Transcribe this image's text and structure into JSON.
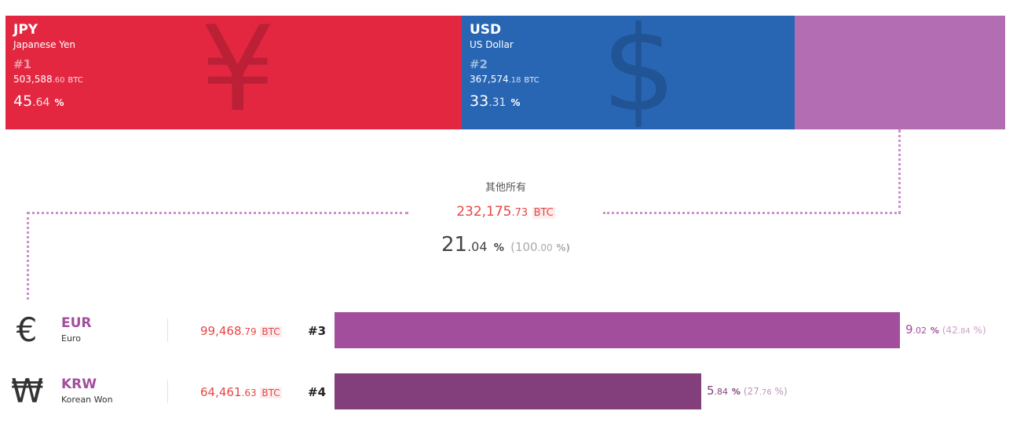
{
  "chart_data": {
    "type": "bar",
    "unit": "BTC",
    "top_segments": [
      {
        "code": "JPY",
        "name": "Japanese Yen",
        "rank": "#1",
        "symbol": "¥",
        "amount_int": "503,588",
        "amount_dec": ".60",
        "amount_unit": "BTC",
        "pct_int": "45",
        "pct_dec": ".64",
        "pct_unit": "%",
        "value": 45.64,
        "color": "#e32741"
      },
      {
        "code": "USD",
        "name": "US Dollar",
        "rank": "#2",
        "symbol": "$",
        "amount_int": "367,574",
        "amount_dec": ".18",
        "amount_unit": "BTC",
        "pct_int": "33",
        "pct_dec": ".31",
        "pct_unit": "%",
        "value": 33.31,
        "color": "#2866b4"
      },
      {
        "value": 21.04,
        "color": "#b36db2"
      }
    ],
    "others": {
      "label": "其他所有",
      "amount_int": "232,175",
      "amount_dec": ".73",
      "amount_unit": "BTC",
      "pct_int": "21",
      "pct_dec": ".04",
      "pct_unit": "%",
      "sub_int": "(100",
      "sub_dec": ".00",
      "sub_unit": "%)"
    },
    "rows": [
      {
        "symbol": "€",
        "code": "EUR",
        "name": "Euro",
        "amount_int": "99,468",
        "amount_dec": ".79",
        "amount_unit": "BTC",
        "rank": "#3",
        "pct_int": "9",
        "pct_dec": ".02",
        "pct_unit": "%",
        "sub_int": "(42",
        "sub_dec": ".84",
        "sub_unit": "%)",
        "share_of_others": 42.84,
        "color": "#a24e9d",
        "text_color": "#a24e9d",
        "sub_color": "#c9a1c7"
      },
      {
        "symbol": "₩",
        "code": "KRW",
        "name": "Korean Won",
        "amount_int": "64,461",
        "amount_dec": ".63",
        "amount_unit": "BTC",
        "rank": "#4",
        "pct_int": "5",
        "pct_dec": ".84",
        "pct_unit": "%",
        "sub_int": "(27",
        "sub_dec": ".76",
        "sub_unit": "%)",
        "share_of_others": 27.76,
        "color": "#823f7b",
        "text_color": "#823f7b",
        "sub_color": "#b895b5"
      }
    ],
    "row_bar_max_share": 42.84
  }
}
